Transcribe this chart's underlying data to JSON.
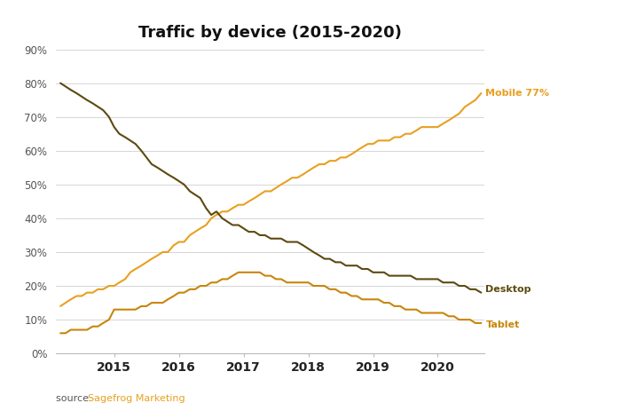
{
  "title": "Traffic by device (2015-2020)",
  "source_label": "source: ",
  "source_link": "Sagefrog Marketing",
  "source_color": "#E8A020",
  "source_text_color": "#666666",
  "ylim": [
    0,
    0.9
  ],
  "yticks": [
    0,
    0.1,
    0.2,
    0.3,
    0.4,
    0.5,
    0.6,
    0.7,
    0.8,
    0.9
  ],
  "ytick_labels": [
    "0%",
    "10%",
    "20%",
    "30%",
    "40%",
    "50%",
    "60%",
    "70%",
    "80%",
    "90%"
  ],
  "mobile_color": "#E8A020",
  "desktop_color": "#5C4A10",
  "tablet_color": "#C8860A",
  "mobile_label": "Mobile 77%",
  "desktop_label": "Desktop",
  "tablet_label": "Tablet",
  "xlim_left": 2014.1,
  "xlim_right": 2020.72,
  "xticks": [
    2015,
    2016,
    2017,
    2018,
    2019,
    2020
  ],
  "mobile_x": [
    2014.17,
    2014.25,
    2014.33,
    2014.42,
    2014.5,
    2014.58,
    2014.67,
    2014.75,
    2014.83,
    2014.92,
    2015.0,
    2015.08,
    2015.17,
    2015.25,
    2015.33,
    2015.42,
    2015.5,
    2015.58,
    2015.67,
    2015.75,
    2015.83,
    2015.92,
    2016.0,
    2016.08,
    2016.17,
    2016.25,
    2016.33,
    2016.42,
    2016.5,
    2016.58,
    2016.67,
    2016.75,
    2016.83,
    2016.92,
    2017.0,
    2017.08,
    2017.17,
    2017.25,
    2017.33,
    2017.42,
    2017.5,
    2017.58,
    2017.67,
    2017.75,
    2017.83,
    2017.92,
    2018.0,
    2018.08,
    2018.17,
    2018.25,
    2018.33,
    2018.42,
    2018.5,
    2018.58,
    2018.67,
    2018.75,
    2018.83,
    2018.92,
    2019.0,
    2019.08,
    2019.17,
    2019.25,
    2019.33,
    2019.42,
    2019.5,
    2019.58,
    2019.67,
    2019.75,
    2019.83,
    2019.92,
    2020.0,
    2020.08,
    2020.17,
    2020.25,
    2020.33,
    2020.42,
    2020.5,
    2020.58,
    2020.67
  ],
  "mobile_y": [
    0.14,
    0.15,
    0.16,
    0.17,
    0.17,
    0.18,
    0.18,
    0.19,
    0.19,
    0.2,
    0.2,
    0.21,
    0.22,
    0.24,
    0.25,
    0.26,
    0.27,
    0.28,
    0.29,
    0.3,
    0.3,
    0.32,
    0.33,
    0.33,
    0.35,
    0.36,
    0.37,
    0.38,
    0.4,
    0.41,
    0.42,
    0.42,
    0.43,
    0.44,
    0.44,
    0.45,
    0.46,
    0.47,
    0.48,
    0.48,
    0.49,
    0.5,
    0.51,
    0.52,
    0.52,
    0.53,
    0.54,
    0.55,
    0.56,
    0.56,
    0.57,
    0.57,
    0.58,
    0.58,
    0.59,
    0.6,
    0.61,
    0.62,
    0.62,
    0.63,
    0.63,
    0.63,
    0.64,
    0.64,
    0.65,
    0.65,
    0.66,
    0.67,
    0.67,
    0.67,
    0.67,
    0.68,
    0.69,
    0.7,
    0.71,
    0.73,
    0.74,
    0.75,
    0.77
  ],
  "desktop_x": [
    2014.17,
    2014.25,
    2014.33,
    2014.42,
    2014.5,
    2014.58,
    2014.67,
    2014.75,
    2014.83,
    2014.92,
    2015.0,
    2015.08,
    2015.17,
    2015.25,
    2015.33,
    2015.42,
    2015.5,
    2015.58,
    2015.67,
    2015.75,
    2015.83,
    2015.92,
    2016.0,
    2016.08,
    2016.17,
    2016.25,
    2016.33,
    2016.42,
    2016.5,
    2016.58,
    2016.67,
    2016.75,
    2016.83,
    2016.92,
    2017.0,
    2017.08,
    2017.17,
    2017.25,
    2017.33,
    2017.42,
    2017.5,
    2017.58,
    2017.67,
    2017.75,
    2017.83,
    2017.92,
    2018.0,
    2018.08,
    2018.17,
    2018.25,
    2018.33,
    2018.42,
    2018.5,
    2018.58,
    2018.67,
    2018.75,
    2018.83,
    2018.92,
    2019.0,
    2019.08,
    2019.17,
    2019.25,
    2019.33,
    2019.42,
    2019.5,
    2019.58,
    2019.67,
    2019.75,
    2019.83,
    2019.92,
    2020.0,
    2020.08,
    2020.17,
    2020.25,
    2020.33,
    2020.42,
    2020.5,
    2020.58,
    2020.67
  ],
  "desktop_y": [
    0.8,
    0.79,
    0.78,
    0.77,
    0.76,
    0.75,
    0.74,
    0.73,
    0.72,
    0.7,
    0.67,
    0.65,
    0.64,
    0.63,
    0.62,
    0.6,
    0.58,
    0.56,
    0.55,
    0.54,
    0.53,
    0.52,
    0.51,
    0.5,
    0.48,
    0.47,
    0.46,
    0.43,
    0.41,
    0.42,
    0.4,
    0.39,
    0.38,
    0.38,
    0.37,
    0.36,
    0.36,
    0.35,
    0.35,
    0.34,
    0.34,
    0.34,
    0.33,
    0.33,
    0.33,
    0.32,
    0.31,
    0.3,
    0.29,
    0.28,
    0.28,
    0.27,
    0.27,
    0.26,
    0.26,
    0.26,
    0.25,
    0.25,
    0.24,
    0.24,
    0.24,
    0.23,
    0.23,
    0.23,
    0.23,
    0.23,
    0.22,
    0.22,
    0.22,
    0.22,
    0.22,
    0.21,
    0.21,
    0.21,
    0.2,
    0.2,
    0.19,
    0.19,
    0.18
  ],
  "tablet_x": [
    2014.17,
    2014.25,
    2014.33,
    2014.42,
    2014.5,
    2014.58,
    2014.67,
    2014.75,
    2014.83,
    2014.92,
    2015.0,
    2015.08,
    2015.17,
    2015.25,
    2015.33,
    2015.42,
    2015.5,
    2015.58,
    2015.67,
    2015.75,
    2015.83,
    2015.92,
    2016.0,
    2016.08,
    2016.17,
    2016.25,
    2016.33,
    2016.42,
    2016.5,
    2016.58,
    2016.67,
    2016.75,
    2016.83,
    2016.92,
    2017.0,
    2017.08,
    2017.17,
    2017.25,
    2017.33,
    2017.42,
    2017.5,
    2017.58,
    2017.67,
    2017.75,
    2017.83,
    2017.92,
    2018.0,
    2018.08,
    2018.17,
    2018.25,
    2018.33,
    2018.42,
    2018.5,
    2018.58,
    2018.67,
    2018.75,
    2018.83,
    2018.92,
    2019.0,
    2019.08,
    2019.17,
    2019.25,
    2019.33,
    2019.42,
    2019.5,
    2019.58,
    2019.67,
    2019.75,
    2019.83,
    2019.92,
    2020.0,
    2020.08,
    2020.17,
    2020.25,
    2020.33,
    2020.42,
    2020.5,
    2020.58,
    2020.67
  ],
  "tablet_y": [
    0.06,
    0.06,
    0.07,
    0.07,
    0.07,
    0.07,
    0.08,
    0.08,
    0.09,
    0.1,
    0.13,
    0.13,
    0.13,
    0.13,
    0.13,
    0.14,
    0.14,
    0.15,
    0.15,
    0.15,
    0.16,
    0.17,
    0.18,
    0.18,
    0.19,
    0.19,
    0.2,
    0.2,
    0.21,
    0.21,
    0.22,
    0.22,
    0.23,
    0.24,
    0.24,
    0.24,
    0.24,
    0.24,
    0.23,
    0.23,
    0.22,
    0.22,
    0.21,
    0.21,
    0.21,
    0.21,
    0.21,
    0.2,
    0.2,
    0.2,
    0.19,
    0.19,
    0.18,
    0.18,
    0.17,
    0.17,
    0.16,
    0.16,
    0.16,
    0.16,
    0.15,
    0.15,
    0.14,
    0.14,
    0.13,
    0.13,
    0.13,
    0.12,
    0.12,
    0.12,
    0.12,
    0.12,
    0.11,
    0.11,
    0.1,
    0.1,
    0.1,
    0.09,
    0.09
  ]
}
